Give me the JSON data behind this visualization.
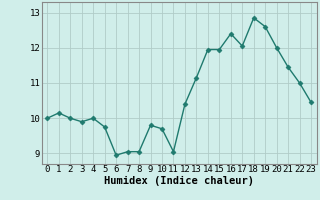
{
  "x": [
    0,
    1,
    2,
    3,
    4,
    5,
    6,
    7,
    8,
    9,
    10,
    11,
    12,
    13,
    14,
    15,
    16,
    17,
    18,
    19,
    20,
    21,
    22,
    23
  ],
  "y": [
    10.0,
    10.15,
    10.0,
    9.9,
    10.0,
    9.75,
    8.95,
    9.05,
    9.05,
    9.8,
    9.7,
    9.05,
    10.4,
    11.15,
    11.95,
    11.95,
    12.4,
    12.05,
    12.85,
    12.6,
    12.0,
    11.45,
    11.0,
    10.45
  ],
  "line_color": "#1f7a6e",
  "marker": "D",
  "markersize": 2.5,
  "linewidth": 1.0,
  "xlabel": "Humidex (Indice chaleur)",
  "xlim": [
    -0.5,
    23.5
  ],
  "ylim": [
    8.7,
    13.3
  ],
  "yticks": [
    9,
    10,
    11,
    12,
    13
  ],
  "xticks": [
    0,
    1,
    2,
    3,
    4,
    5,
    6,
    7,
    8,
    9,
    10,
    11,
    12,
    13,
    14,
    15,
    16,
    17,
    18,
    19,
    20,
    21,
    22,
    23
  ],
  "bg_color": "#d0eeea",
  "grid_color": "#b0ccc8",
  "tick_label_fontsize": 6.5,
  "xlabel_fontsize": 7.5,
  "xlabel_fontweight": "bold"
}
